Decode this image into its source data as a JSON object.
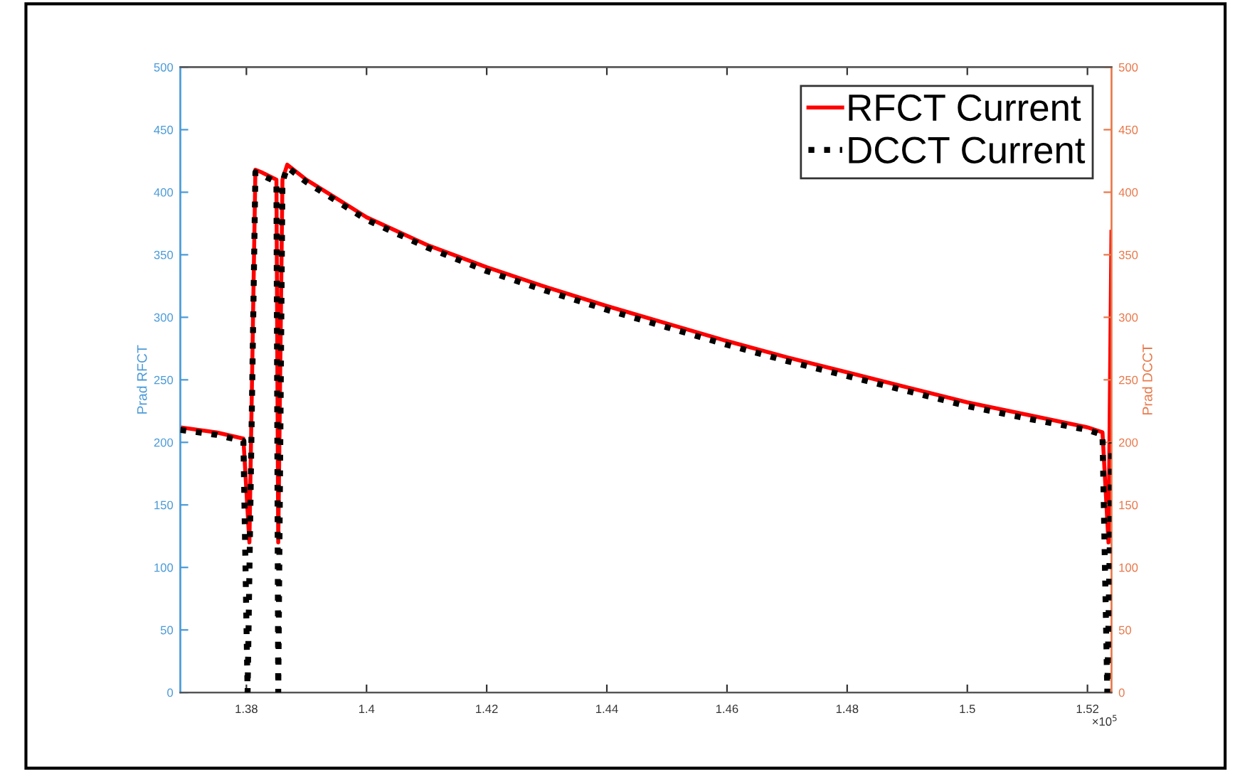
{
  "chart_data": {
    "type": "line",
    "ylabel": "Prad RFCT",
    "y2label": "Prad DCCT",
    "xlim": [
      1.369,
      1.524
    ],
    "xticks": [
      1.38,
      1.4,
      1.42,
      1.44,
      1.46,
      1.48,
      1.5,
      1.52
    ],
    "ylim": [
      0,
      500
    ],
    "yticks": [
      0,
      50,
      100,
      150,
      200,
      250,
      300,
      350,
      400,
      450,
      500
    ],
    "y2lim": [
      0,
      500
    ],
    "y2ticks": [
      0,
      50,
      100,
      150,
      200,
      250,
      300,
      350,
      400,
      450,
      500
    ],
    "annotations": [
      "×10$^{5}$"
    ],
    "legend": "top right",
    "grid": false,
    "marker": "none",
    "series": [
      {
        "name": "RFCT Current",
        "color": "#ff0000",
        "line_style": "solid",
        "x": [
          1.369,
          1.375,
          1.3795,
          1.3805,
          1.3815,
          1.3825,
          1.385,
          1.3853,
          1.386,
          1.3868,
          1.39,
          1.395,
          1.4,
          1.41,
          1.42,
          1.43,
          1.44,
          1.45,
          1.46,
          1.47,
          1.48,
          1.49,
          1.5,
          1.51,
          1.52,
          1.5225,
          1.5235,
          1.524
        ],
        "values": [
          212,
          208,
          203,
          120,
          418,
          416,
          410,
          120,
          410,
          422,
          410,
          395,
          380,
          358,
          340,
          324,
          309,
          295,
          281,
          268,
          256,
          244,
          232,
          222,
          212,
          208,
          120,
          370
        ]
      },
      {
        "name": "DCCT Current",
        "color": "#000000",
        "line_style": "dotted",
        "axis": "y2",
        "x": [
          1.369,
          1.375,
          1.3795,
          1.3802,
          1.3815,
          1.3825,
          1.385,
          1.3853,
          1.386,
          1.3868,
          1.39,
          1.395,
          1.4,
          1.41,
          1.42,
          1.43,
          1.44,
          1.45,
          1.46,
          1.47,
          1.48,
          1.49,
          1.5,
          1.51,
          1.52,
          1.5225,
          1.5233,
          1.524
        ],
        "values": [
          210,
          206,
          201,
          0,
          416,
          414,
          408,
          0,
          408,
          420,
          408,
          393,
          378,
          356,
          337,
          321,
          306,
          292,
          278,
          265,
          253,
          241,
          229,
          219,
          210,
          206,
          0,
          200
        ]
      }
    ]
  }
}
